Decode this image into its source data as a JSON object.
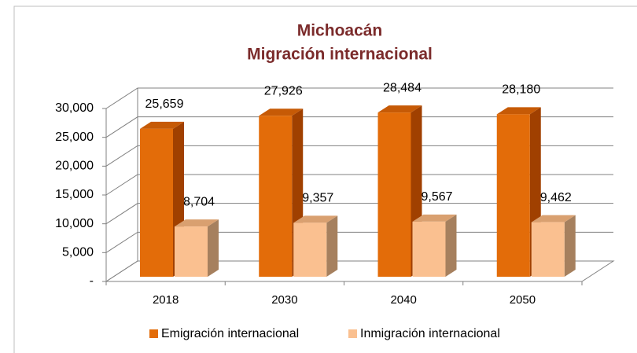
{
  "chart_data": {
    "type": "bar3d",
    "title": "Michoacán",
    "subtitle": "Migración internacional",
    "categories": [
      "2018",
      "2030",
      "2040",
      "2050"
    ],
    "series": [
      {
        "name": "Emigración internacional",
        "color": "#e36c09",
        "values": [
          25659,
          27926,
          28484,
          28180
        ],
        "value_labels": [
          "25,659",
          "27,926",
          "28,484",
          "28,180"
        ]
      },
      {
        "name": "Inmigración internacional",
        "color": "#fac090",
        "values": [
          8704,
          9357,
          9567,
          9462
        ],
        "value_labels": [
          "8,704",
          "9,357",
          "9,567",
          "9,462"
        ]
      }
    ],
    "ylim": [
      0,
      30000
    ],
    "yticks": [
      {
        "value": 0,
        "label": "-"
      },
      {
        "value": 5000,
        "label": "5,000"
      },
      {
        "value": 10000,
        "label": "10,000"
      },
      {
        "value": 15000,
        "label": "15,000"
      },
      {
        "value": 20000,
        "label": "20,000"
      },
      {
        "value": 25000,
        "label": "25,000"
      },
      {
        "value": 30000,
        "label": "30,000"
      }
    ],
    "grid": true,
    "legend": "bottom"
  }
}
